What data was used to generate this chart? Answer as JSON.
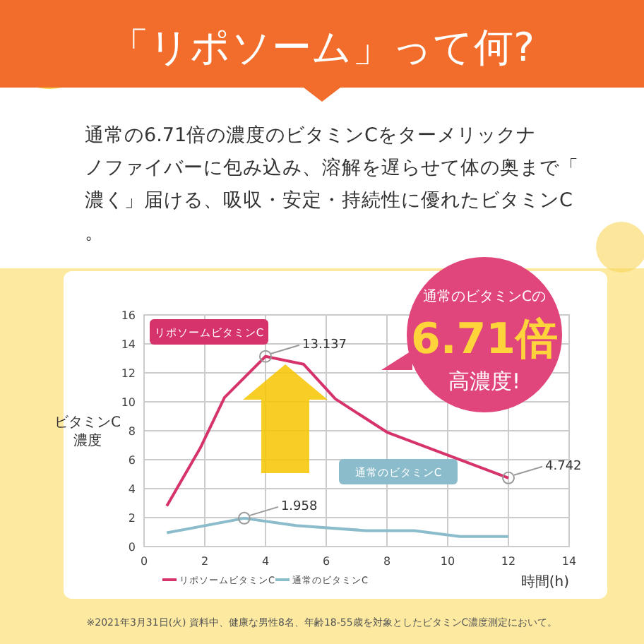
{
  "chart_data": {
    "type": "line",
    "title": "「リポソーム」って何?",
    "subtitle": "通常の6.71倍の濃度のビタミンCをターメリックナノファイバーに包み込み、溶解を遅らせて体の奥まで「濃く」届ける、吸収・安定・持続性に優れたビタミンC。",
    "xlabel": "時間(h)",
    "ylabel": "ビタミンC\n濃度",
    "xlim": [
      0,
      14
    ],
    "xticks": [
      0,
      2,
      4,
      6,
      8,
      10,
      12,
      14
    ],
    "ylim": [
      0,
      16
    ],
    "yticks": [
      0,
      2,
      4,
      6,
      8,
      10,
      12,
      14,
      16
    ],
    "grid": true,
    "legend": "bottom",
    "marker": "none",
    "line_style": "solid",
    "series": [
      {
        "name": "リポソームビタミンC",
        "color": "#d6336c",
        "x": [
          0.75,
          1.85,
          2.65,
          4,
          5.25,
          6.3,
          8,
          12
        ],
        "values": [
          2.8,
          6.8,
          10.3,
          13.137,
          12.6,
          10.2,
          7.9,
          4.742
        ]
      },
      {
        "name": "通常のビタミンC",
        "color": "#8bbccc",
        "x": [
          0.75,
          3.3,
          5,
          7.3,
          8.9,
          10.4,
          12
        ],
        "values": [
          0.95,
          1.958,
          1.45,
          1.1,
          1.1,
          0.7,
          0.7
        ]
      }
    ],
    "annotations": [
      {
        "text": "13.137",
        "x": 4,
        "y": 13.137
      },
      {
        "text": "1.958",
        "x": 3.3,
        "y": 1.958
      },
      {
        "text": "4.742",
        "x": 12,
        "y": 4.742
      },
      "通常のビタミンCの",
      "6.71倍",
      "高濃度!",
      "※2021年3月31日(火) 資料中、健康な男性8名、年齢18-55歳を対象としたビタミンC濃度測定において。"
    ]
  }
}
